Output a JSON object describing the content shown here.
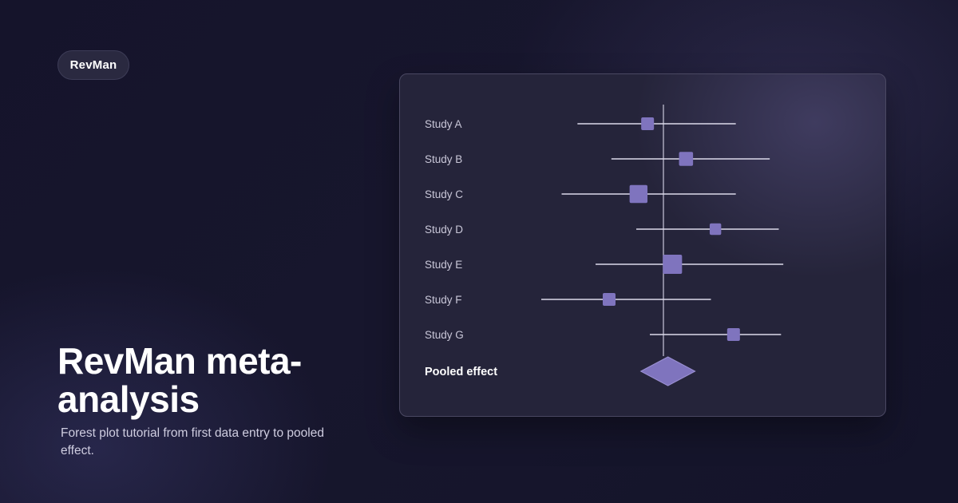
{
  "badge": {
    "label": "RevMan"
  },
  "hero": {
    "title": "RevMan meta-analysis",
    "subtitle": "Forest plot tutorial from first data entry to pooled effect."
  },
  "colors": {
    "background": "#16152c",
    "panel": "#25243a",
    "marker": "#7f74be",
    "ci_line": "#dcdaea",
    "reference_line": "#a9a7bb"
  },
  "chart_data": {
    "type": "forest",
    "title": "",
    "xlabel": "",
    "ylabel": "",
    "x_range": [
      -6.0,
      6.0
    ],
    "null_line": 0,
    "grid": false,
    "studies": [
      {
        "label": "Study A",
        "estimate": -0.7,
        "ci_low": -3.8,
        "ci_high": 3.2,
        "weight": 1.0
      },
      {
        "label": "Study B",
        "estimate": 1.0,
        "ci_low": -2.3,
        "ci_high": 4.7,
        "weight": 1.1
      },
      {
        "label": "Study C",
        "estimate": -1.1,
        "ci_low": -4.5,
        "ci_high": 3.2,
        "weight": 1.4
      },
      {
        "label": "Study D",
        "estimate": 2.3,
        "ci_low": -1.2,
        "ci_high": 5.1,
        "weight": 0.9
      },
      {
        "label": "Study E",
        "estimate": 0.4,
        "ci_low": -3.0,
        "ci_high": 5.3,
        "weight": 1.5
      },
      {
        "label": "Study F",
        "estimate": -2.4,
        "ci_low": -5.4,
        "ci_high": 2.1,
        "weight": 1.0
      },
      {
        "label": "Study G",
        "estimate": 3.1,
        "ci_low": -0.6,
        "ci_high": 5.2,
        "weight": 1.0
      }
    ],
    "pooled": {
      "label": "Pooled effect",
      "estimate": 0.2,
      "ci_low": -1.0,
      "ci_high": 1.4
    }
  }
}
